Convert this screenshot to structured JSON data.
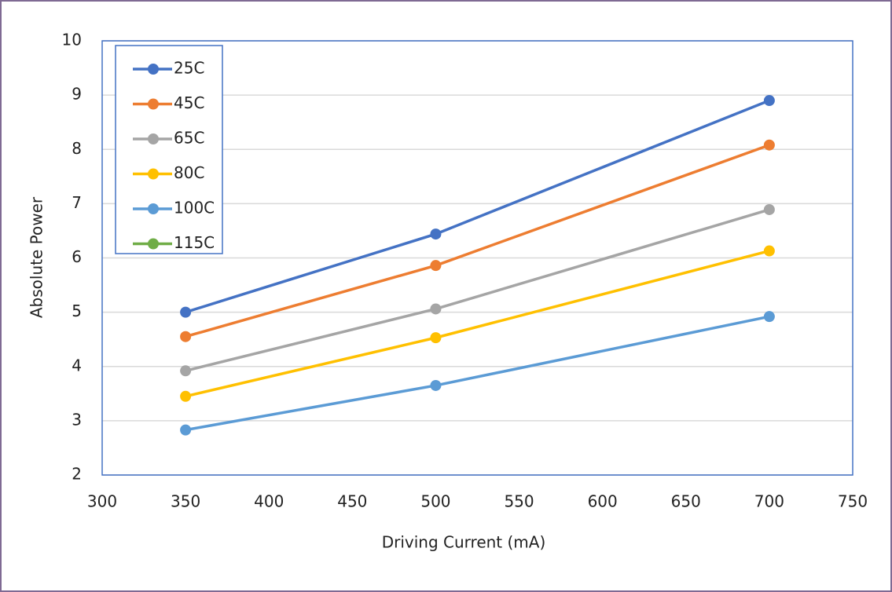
{
  "chart_data": {
    "type": "line",
    "x_label": "Driving Current (mA)",
    "y_label": "Absolute Power",
    "x": [
      350,
      500,
      700
    ],
    "series": [
      {
        "name": "25C",
        "color": "#4472c4",
        "values": [
          5.0,
          6.44,
          8.9
        ]
      },
      {
        "name": "45C",
        "color": "#ed7d31",
        "values": [
          4.55,
          5.86,
          8.08
        ]
      },
      {
        "name": "65C",
        "color": "#a5a5a5",
        "values": [
          3.92,
          5.06,
          6.89
        ]
      },
      {
        "name": "80C",
        "color": "#ffc000",
        "values": [
          3.45,
          4.53,
          6.13
        ]
      },
      {
        "name": "100C",
        "color": "#5b9bd5",
        "values": [
          2.83,
          3.65,
          4.92
        ]
      },
      {
        "name": "115C",
        "color": "#70ad47",
        "values": [
          null,
          null,
          null
        ]
      }
    ],
    "xlim": [
      300,
      750
    ],
    "xticks": [
      300,
      350,
      400,
      450,
      500,
      550,
      600,
      650,
      700,
      750
    ],
    "ylim": [
      2,
      10
    ],
    "yticks": [
      2,
      3,
      4,
      5,
      6,
      7,
      8,
      9,
      10
    ],
    "grid": "y",
    "legend": "top-left"
  }
}
